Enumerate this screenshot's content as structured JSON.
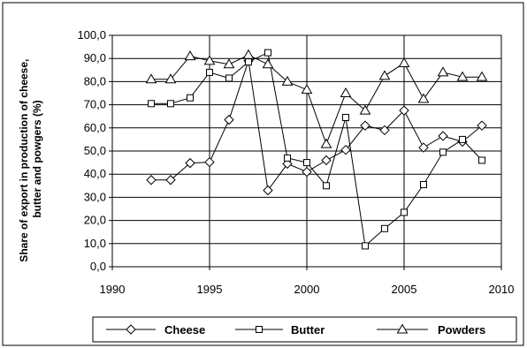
{
  "chart_data": {
    "type": "line",
    "title": "",
    "xlabel": "",
    "ylabel": "Share of export in production of cheese, butter and powgers (%)",
    "ylabel_lines": [
      "Share of export in production of cheese,",
      "butter and powgers (%)"
    ],
    "xlim": [
      1990,
      2010
    ],
    "ylim": [
      0,
      100
    ],
    "x_ticks": [
      1990,
      1995,
      2000,
      2005,
      2010
    ],
    "y_ticks": [
      0,
      10,
      20,
      30,
      40,
      50,
      60,
      70,
      80,
      90,
      100
    ],
    "y_tick_labels": [
      "0,0",
      "10,0",
      "20,0",
      "30,0",
      "40,0",
      "50,0",
      "60,0",
      "70,0",
      "80,0",
      "90,0",
      "100,0"
    ],
    "grid": "horizontal and vertical",
    "legend_position": "bottom",
    "x": [
      1992,
      1993,
      1994,
      1995,
      1996,
      1997,
      1998,
      1999,
      2000,
      2001,
      2002,
      2003,
      2004,
      2005,
      2006,
      2007,
      2008,
      2009
    ],
    "series": [
      {
        "name": "Cheese",
        "marker": "diamond",
        "values": [
          37.5,
          37.5,
          44.8,
          45.2,
          63.5,
          89.0,
          33.0,
          44.5,
          41.0,
          46.0,
          50.5,
          61.0,
          59.0,
          67.5,
          51.5,
          56.5,
          54.0,
          61.0
        ]
      },
      {
        "name": "Butter",
        "marker": "square",
        "values": [
          70.5,
          70.5,
          73.0,
          84.0,
          81.5,
          88.5,
          92.5,
          47.0,
          45.0,
          35.0,
          64.5,
          9.0,
          16.5,
          23.5,
          35.5,
          49.5,
          55.0,
          46.0
        ]
      },
      {
        "name": "Powders",
        "marker": "triangle",
        "values": [
          81.0,
          81.0,
          91.0,
          89.0,
          87.5,
          91.5,
          87.5,
          80.0,
          76.5,
          53.0,
          75.0,
          67.5,
          82.5,
          88.0,
          72.5,
          84.0,
          82.0,
          82.0
        ]
      }
    ]
  }
}
